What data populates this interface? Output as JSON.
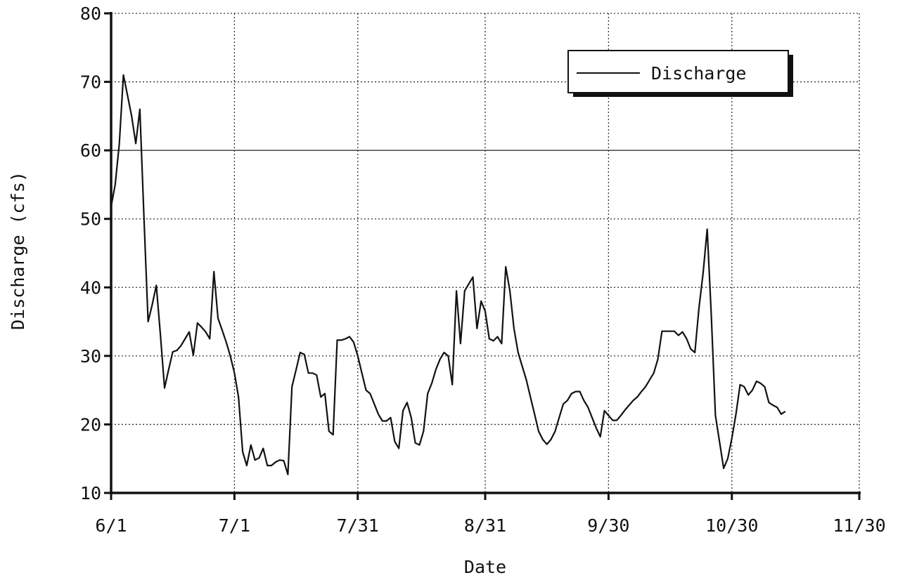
{
  "chart_data": {
    "type": "line",
    "xlabel": "Date",
    "ylabel": "Discharge (cfs)",
    "x_tick_labels": [
      "6/1",
      "7/1",
      "7/31",
      "8/31",
      "9/30",
      "10/30",
      "11/30"
    ],
    "y_tick_labels": [
      "10",
      "20",
      "30",
      "40",
      "50",
      "60",
      "70",
      "80"
    ],
    "xlim": [
      "6/1",
      "11/30"
    ],
    "ylim": [
      10,
      80
    ],
    "grid": true,
    "legend_position": "top-right",
    "series": [
      {
        "name": "Discharge",
        "color": "#111111",
        "points": [
          [
            "6/1",
            51.8
          ],
          [
            "6/2",
            55
          ],
          [
            "6/3",
            61
          ],
          [
            "6/4",
            71
          ],
          [
            "6/5",
            68
          ],
          [
            "6/6",
            65
          ],
          [
            "6/7",
            61
          ],
          [
            "6/8",
            66
          ],
          [
            "6/9",
            50
          ],
          [
            "6/10",
            35
          ],
          [
            "6/11",
            37.5
          ],
          [
            "6/12",
            40.3
          ],
          [
            "6/13",
            33
          ],
          [
            "6/14",
            25.3
          ],
          [
            "6/15",
            28
          ],
          [
            "6/16",
            30.6
          ],
          [
            "6/17",
            30.8
          ],
          [
            "6/18",
            31.5
          ],
          [
            "6/19",
            32.5
          ],
          [
            "6/20",
            33.5
          ],
          [
            "6/21",
            30.1
          ],
          [
            "6/22",
            34.8
          ],
          [
            "6/23",
            34.2
          ],
          [
            "6/24",
            33.5
          ],
          [
            "6/25",
            32.5
          ],
          [
            "6/26",
            42.3
          ],
          [
            "6/27",
            35.5
          ],
          [
            "6/28",
            33.8
          ],
          [
            "6/29",
            32
          ],
          [
            "6/30",
            30
          ],
          [
            "7/1",
            27.5
          ],
          [
            "7/2",
            24
          ],
          [
            "7/3",
            16
          ],
          [
            "7/4",
            14
          ],
          [
            "7/5",
            17
          ],
          [
            "7/6",
            14.8
          ],
          [
            "7/7",
            15.1
          ],
          [
            "7/8",
            16.5
          ],
          [
            "7/9",
            14
          ],
          [
            "7/10",
            14
          ],
          [
            "7/11",
            14.5
          ],
          [
            "7/12",
            14.8
          ],
          [
            "7/13",
            14.7
          ],
          [
            "7/14",
            12.7
          ],
          [
            "7/15",
            25.5
          ],
          [
            "7/16",
            28
          ],
          [
            "7/17",
            30.5
          ],
          [
            "7/18",
            30.2
          ],
          [
            "7/19",
            27.5
          ],
          [
            "7/20",
            27.5
          ],
          [
            "7/21",
            27.2
          ],
          [
            "7/22",
            24
          ],
          [
            "7/23",
            24.5
          ],
          [
            "7/24",
            19
          ],
          [
            "7/25",
            18.5
          ],
          [
            "7/26",
            32.3
          ],
          [
            "7/27",
            32.3
          ],
          [
            "7/28",
            32.5
          ],
          [
            "7/29",
            32.8
          ],
          [
            "7/30",
            32
          ],
          [
            "7/31",
            30
          ],
          [
            "8/1",
            27.5
          ],
          [
            "8/2",
            25
          ],
          [
            "8/3",
            24.5
          ],
          [
            "8/4",
            23
          ],
          [
            "8/5",
            21.5
          ],
          [
            "8/6",
            20.5
          ],
          [
            "8/7",
            20.5
          ],
          [
            "8/8",
            21
          ],
          [
            "8/9",
            17.5
          ],
          [
            "8/10",
            16.5
          ],
          [
            "8/11",
            22
          ],
          [
            "8/12",
            23.2
          ],
          [
            "8/13",
            21
          ],
          [
            "8/14",
            17.3
          ],
          [
            "8/15",
            17
          ],
          [
            "8/16",
            19
          ],
          [
            "8/17",
            24.5
          ],
          [
            "8/18",
            26
          ],
          [
            "8/19",
            28
          ],
          [
            "8/20",
            29.5
          ],
          [
            "8/21",
            30.5
          ],
          [
            "8/22",
            30
          ],
          [
            "8/23",
            25.8
          ],
          [
            "8/24",
            39.5
          ],
          [
            "8/25",
            31.8
          ],
          [
            "8/26",
            39.5
          ],
          [
            "8/27",
            40.5
          ],
          [
            "8/28",
            41.5
          ],
          [
            "8/29",
            34
          ],
          [
            "8/30",
            38
          ],
          [
            "8/31",
            36.5
          ],
          [
            "9/1",
            32.5
          ],
          [
            "9/2",
            32.2
          ],
          [
            "9/3",
            32.8
          ],
          [
            "9/4",
            31.8
          ],
          [
            "9/5",
            43
          ],
          [
            "9/6",
            39.5
          ],
          [
            "9/7",
            34
          ],
          [
            "9/8",
            30.5
          ],
          [
            "9/9",
            28.5
          ],
          [
            "9/10",
            26.5
          ],
          [
            "9/11",
            24
          ],
          [
            "9/12",
            21.5
          ],
          [
            "9/13",
            19
          ],
          [
            "9/14",
            17.8
          ],
          [
            "9/15",
            17.1
          ],
          [
            "9/16",
            17.8
          ],
          [
            "9/17",
            19
          ],
          [
            "9/18",
            21
          ],
          [
            "9/19",
            23
          ],
          [
            "9/20",
            23.5
          ],
          [
            "9/21",
            24.5
          ],
          [
            "9/22",
            24.8
          ],
          [
            "9/23",
            24.8
          ],
          [
            "9/24",
            23.5
          ],
          [
            "9/25",
            22.5
          ],
          [
            "9/26",
            21
          ],
          [
            "9/27",
            19.5
          ],
          [
            "9/28",
            18.2
          ],
          [
            "9/29",
            22
          ],
          [
            "9/30",
            21.3
          ],
          [
            "10/1",
            20.6
          ],
          [
            "10/2",
            20.6
          ],
          [
            "10/3",
            21.3
          ],
          [
            "10/4",
            22.1
          ],
          [
            "10/5",
            22.8
          ],
          [
            "10/6",
            23.5
          ],
          [
            "10/7",
            24
          ],
          [
            "10/8",
            24.8
          ],
          [
            "10/9",
            25.5
          ],
          [
            "10/10",
            26.5
          ],
          [
            "10/11",
            27.5
          ],
          [
            "10/12",
            29.5
          ],
          [
            "10/13",
            33.6
          ],
          [
            "10/14",
            33.6
          ],
          [
            "10/15",
            33.6
          ],
          [
            "10/16",
            33.6
          ],
          [
            "10/17",
            33
          ],
          [
            "10/18",
            33.5
          ],
          [
            "10/19",
            32.5
          ],
          [
            "10/20",
            31
          ],
          [
            "10/21",
            30.5
          ],
          [
            "10/22",
            37
          ],
          [
            "10/23",
            42
          ],
          [
            "10/24",
            48.5
          ],
          [
            "10/25",
            36
          ],
          [
            "10/26",
            21.3
          ],
          [
            "10/27",
            17.5
          ],
          [
            "10/28",
            13.6
          ],
          [
            "10/29",
            15
          ],
          [
            "10/30",
            18
          ],
          [
            "10/31",
            21.5
          ],
          [
            "11/1",
            25.8
          ],
          [
            "11/2",
            25.5
          ],
          [
            "11/3",
            24.3
          ],
          [
            "11/4",
            25
          ],
          [
            "11/5",
            26.3
          ],
          [
            "11/6",
            26
          ],
          [
            "11/7",
            25.5
          ],
          [
            "11/8",
            23.2
          ],
          [
            "11/9",
            22.8
          ],
          [
            "11/10",
            22.5
          ],
          [
            "11/11",
            21.5
          ],
          [
            "11/12",
            21.9
          ]
        ]
      }
    ]
  }
}
